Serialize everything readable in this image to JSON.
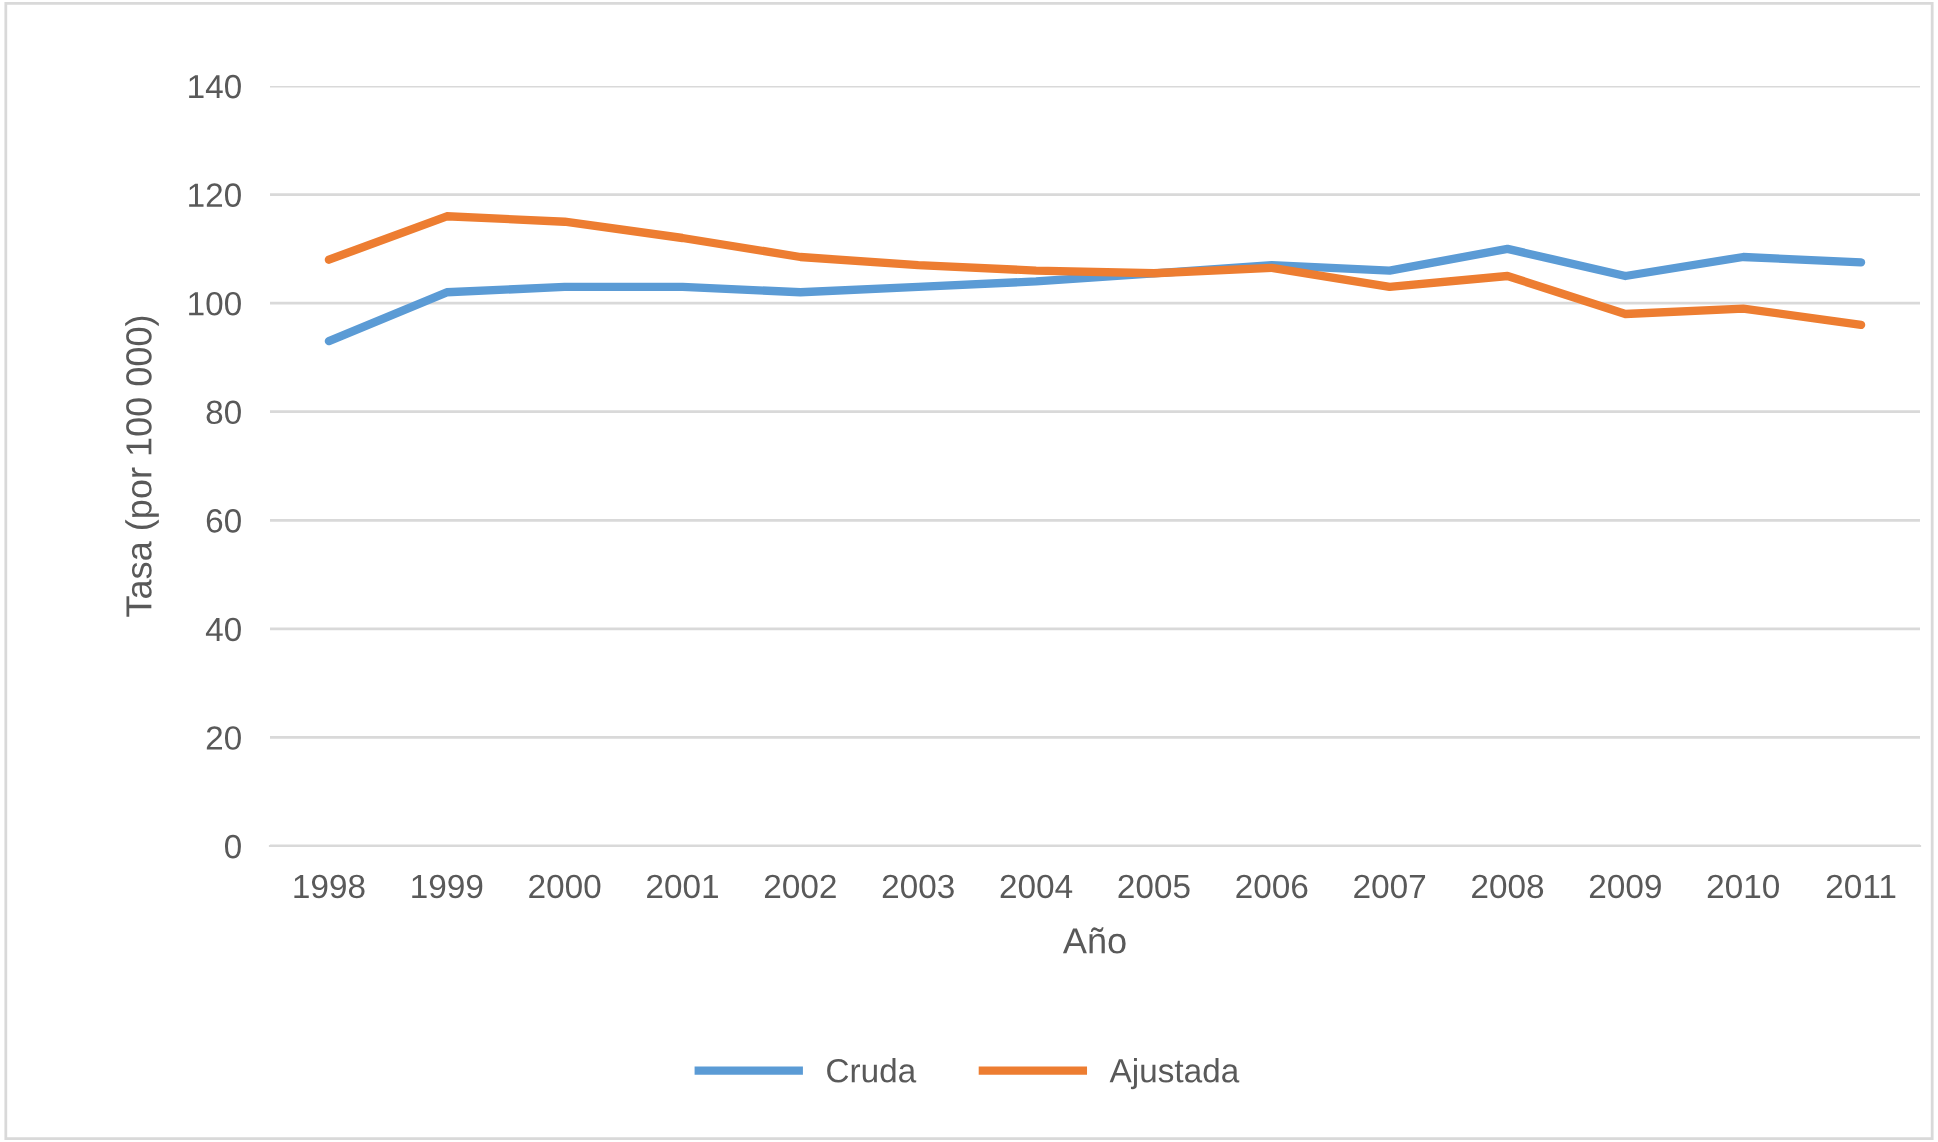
{
  "chart_data": {
    "type": "line",
    "xlabel": "Año",
    "ylabel": "Tasa (por 100 000)",
    "categories": [
      "1998",
      "1999",
      "2000",
      "2001",
      "2002",
      "2003",
      "2004",
      "2005",
      "2006",
      "2007",
      "2008",
      "2009",
      "2010",
      "2011"
    ],
    "series": [
      {
        "name": "Cruda",
        "color": "#5b9bd5",
        "values": [
          93,
          102,
          103,
          103,
          102,
          103,
          104,
          105.5,
          107,
          106,
          110,
          105,
          108.5,
          107.5
        ]
      },
      {
        "name": "Ajustada",
        "color": "#ed7d31",
        "values": [
          108,
          116,
          115,
          112,
          108.5,
          107,
          106,
          105.5,
          106.5,
          103,
          105,
          98,
          99,
          96
        ]
      }
    ],
    "ylim": [
      0,
      140
    ],
    "yticks": [
      0,
      20,
      40,
      60,
      80,
      100,
      120,
      140
    ],
    "grid": "y",
    "legend": "bottom",
    "marker": "none",
    "line_style": "solid"
  }
}
